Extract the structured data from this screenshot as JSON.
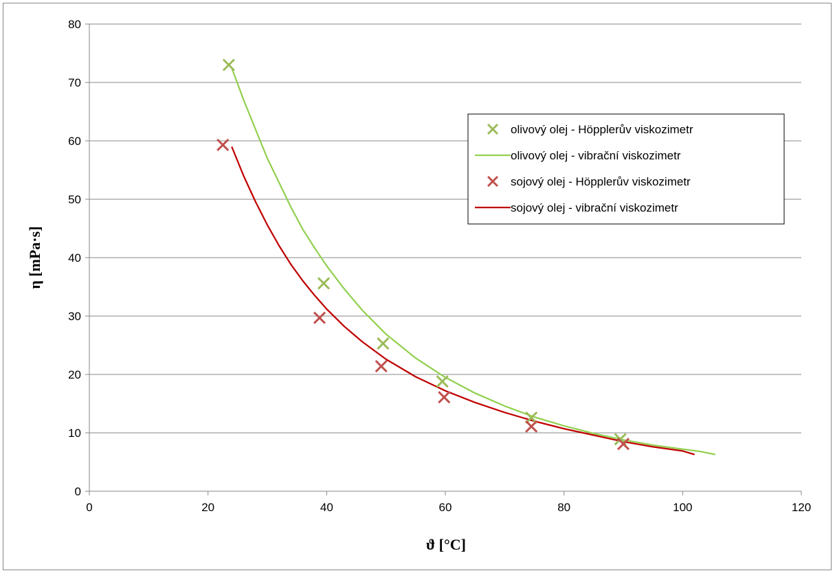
{
  "chart_data": {
    "type": "scatter",
    "title": "",
    "xlabel": "ϑ [°C]",
    "ylabel": "η [mPa·s]",
    "xlim": [
      0,
      120
    ],
    "ylim": [
      0,
      80
    ],
    "xticks": [
      0,
      20,
      40,
      60,
      80,
      100,
      120
    ],
    "yticks": [
      0,
      10,
      20,
      30,
      40,
      50,
      60,
      70,
      80
    ],
    "grid": "horizontal",
    "legend_position": "right",
    "series": [
      {
        "name": "olivový olej - Höpplerův viskozimetr",
        "kind": "markers",
        "marker": "x",
        "color": "#9bbb59",
        "x": [
          23.5,
          39.5,
          49.5,
          59.5,
          74.5,
          89.5
        ],
        "y": [
          73.0,
          35.6,
          25.3,
          18.8,
          12.6,
          8.9
        ]
      },
      {
        "name": "olivový olej - vibrační viskozimetr",
        "kind": "line",
        "color": "#92d050",
        "x": [
          24,
          26,
          28,
          30,
          32,
          34,
          36,
          38,
          40,
          43,
          46,
          50,
          55,
          60,
          65,
          70,
          75,
          80,
          85,
          90,
          95,
          100,
          103,
          105.5
        ],
        "y": [
          72.5,
          67.0,
          62.0,
          57.0,
          52.8,
          48.6,
          44.8,
          41.6,
          38.6,
          34.6,
          31.0,
          26.9,
          22.8,
          19.5,
          16.8,
          14.6,
          12.7,
          11.2,
          9.9,
          8.8,
          7.9,
          7.2,
          6.8,
          6.3
        ]
      },
      {
        "name": "sojový olej - Höpplerův viskozimetr",
        "kind": "markers",
        "marker": "x",
        "color": "#c0504d",
        "x": [
          22.5,
          38.8,
          49.2,
          59.8,
          74.5,
          90.0
        ],
        "y": [
          59.3,
          29.7,
          21.4,
          16.1,
          11.1,
          8.1
        ]
      },
      {
        "name": "sojový olej - vibrační viskozimetr",
        "kind": "line",
        "color": "#c00000",
        "x": [
          24,
          26,
          28,
          30,
          32,
          34,
          36,
          38,
          40,
          43,
          46,
          50,
          55,
          60,
          65,
          70,
          75,
          80,
          85,
          90,
          95,
          100,
          102
        ],
        "y": [
          59.0,
          54.0,
          49.6,
          45.6,
          42.0,
          38.8,
          36.0,
          33.5,
          31.2,
          28.2,
          25.6,
          22.6,
          19.6,
          17.2,
          15.2,
          13.5,
          12.0,
          10.7,
          9.6,
          8.5,
          7.6,
          6.9,
          6.3
        ]
      }
    ]
  }
}
